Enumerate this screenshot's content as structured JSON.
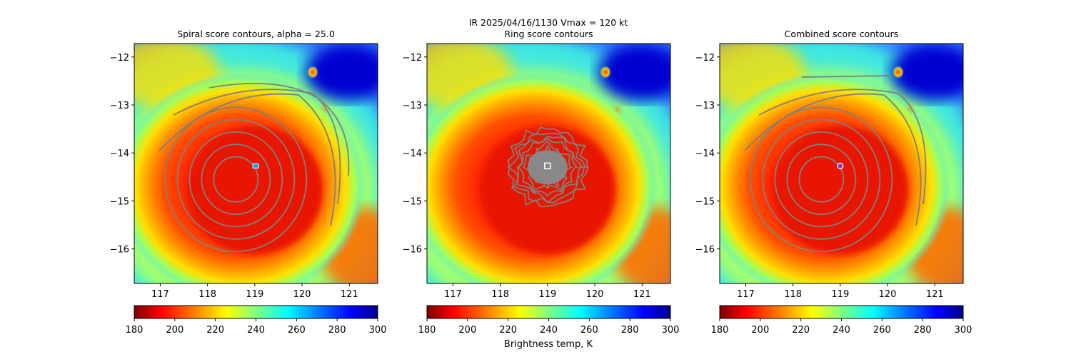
{
  "figure": {
    "suptitle_line1": "IR  2025/04/16/1130    Vmax = 120 kt",
    "colorbar_label": "Brightness temp, K"
  },
  "chart_data": [
    {
      "type": "heatmap",
      "title": "Spiral score contours, alpha = 25.0",
      "xlim": [
        116.45,
        121.6
      ],
      "ylim": [
        -16.72,
        -11.72
      ],
      "x_ticks": [
        117,
        118,
        119,
        120,
        121
      ],
      "y_ticks": [
        -12,
        -13,
        -14,
        -15,
        -16
      ],
      "center": [
        119.02,
        -14.27
      ],
      "center_marker": "cross",
      "contours": "spiral",
      "colorbar": {
        "min": 180,
        "max": 300,
        "ticks": [
          180,
          200,
          220,
          240,
          260,
          280,
          300
        ]
      }
    },
    {
      "type": "heatmap",
      "title": "Ring score contours",
      "xlim": [
        116.45,
        121.6
      ],
      "ylim": [
        -16.72,
        -11.72
      ],
      "x_ticks": [
        117,
        118,
        119,
        120,
        121
      ],
      "y_ticks": [
        -12,
        -13,
        -14,
        -15,
        -16
      ],
      "center": [
        119.0,
        -14.27
      ],
      "center_marker": "square",
      "contours": "ring",
      "colorbar": {
        "min": 180,
        "max": 300,
        "ticks": [
          180,
          200,
          220,
          240,
          260,
          280,
          300
        ]
      }
    },
    {
      "type": "heatmap",
      "title": "Combined score contours",
      "xlim": [
        116.45,
        121.6
      ],
      "ylim": [
        -16.72,
        -11.72
      ],
      "x_ticks": [
        117,
        118,
        119,
        120,
        121
      ],
      "y_ticks": [
        -12,
        -13,
        -14,
        -15,
        -16
      ],
      "center": [
        119.0,
        -14.27
      ],
      "center_marker": "circle",
      "contours": "combined",
      "colorbar": {
        "min": 180,
        "max": 300,
        "ticks": [
          180,
          200,
          220,
          240,
          260,
          280,
          300
        ]
      }
    }
  ],
  "colors": {
    "jet_r": [
      "#7f0000",
      "#ff0000",
      "#ff8000",
      "#ffff00",
      "#80ff80",
      "#00ffff",
      "#0080ff",
      "#0000ff",
      "#00008f"
    ],
    "contour": "#808080",
    "marker_fill": "#ffffff",
    "circle_marker": "#8040c0"
  }
}
